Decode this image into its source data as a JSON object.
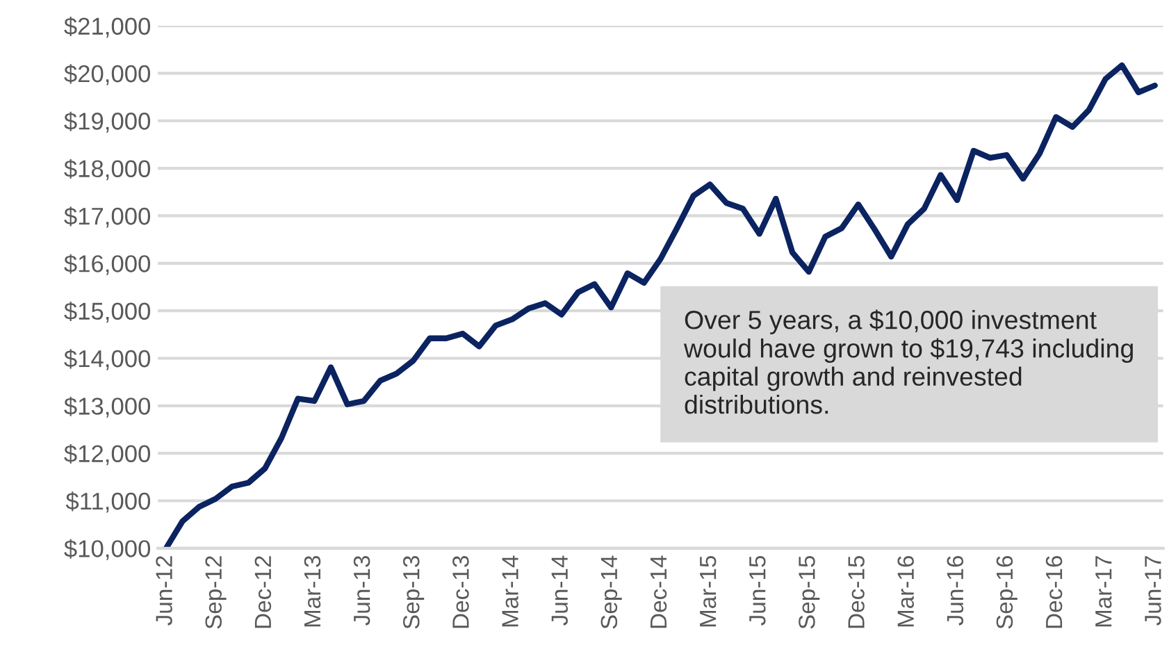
{
  "chart_data": {
    "type": "line",
    "categories": [
      "Jun-12",
      null,
      null,
      "Sep-12",
      null,
      null,
      "Dec-12",
      null,
      null,
      "Mar-13",
      null,
      null,
      "Jun-13",
      null,
      null,
      "Sep-13",
      null,
      null,
      "Dec-13",
      null,
      null,
      "Mar-14",
      null,
      null,
      "Jun-14",
      null,
      null,
      "Sep-14",
      null,
      null,
      "Dec-14",
      null,
      null,
      "Mar-15",
      null,
      null,
      "Jun-15",
      null,
      null,
      "Sep-15",
      null,
      null,
      "Dec-15",
      null,
      null,
      "Mar-16",
      null,
      null,
      "Jun-16",
      null,
      null,
      "Sep-16",
      null,
      null,
      "Dec-16",
      null,
      null,
      "Mar-17",
      null,
      null,
      "Jun-17"
    ],
    "series": [
      {
        "color": "#0b2360",
        "values": [
          10000,
          10570,
          10870,
          11040,
          11300,
          11380,
          11680,
          12320,
          13150,
          13100,
          13810,
          13030,
          13100,
          13530,
          13680,
          13950,
          14420,
          14420,
          14520,
          14250,
          14690,
          14820,
          15050,
          15160,
          14920,
          15390,
          15560,
          15070,
          15790,
          15590,
          16090,
          16740,
          17420,
          17660,
          17270,
          17150,
          16620,
          17360,
          16230,
          15820,
          16560,
          16740,
          17240,
          16710,
          16140,
          16820,
          17150,
          17860,
          17330,
          18370,
          18220,
          18280,
          17780,
          18310,
          19080,
          18870,
          19230,
          19880,
          20170,
          19600,
          19743
        ]
      }
    ],
    "ylim": [
      10000,
      21000
    ],
    "yticks": [
      {
        "value": 10000,
        "label": "$10,000"
      },
      {
        "value": 11000,
        "label": "$11,000"
      },
      {
        "value": 12000,
        "label": "$12,000"
      },
      {
        "value": 13000,
        "label": "$13,000"
      },
      {
        "value": 14000,
        "label": "$14,000"
      },
      {
        "value": 15000,
        "label": "$15,000"
      },
      {
        "value": 16000,
        "label": "$16,000"
      },
      {
        "value": 17000,
        "label": "$17,000"
      },
      {
        "value": 18000,
        "label": "$18,000"
      },
      {
        "value": 19000,
        "label": "$19,000"
      },
      {
        "value": 20000,
        "label": "$20,000"
      },
      {
        "value": 21000,
        "label": "$21,000"
      }
    ],
    "grid": "y",
    "marker": "none",
    "line_style": "solid",
    "annotations": [
      "Over 5 years, a $10,000 investment would have grown to $19,743 including capital growth and reinvested distributions."
    ]
  }
}
